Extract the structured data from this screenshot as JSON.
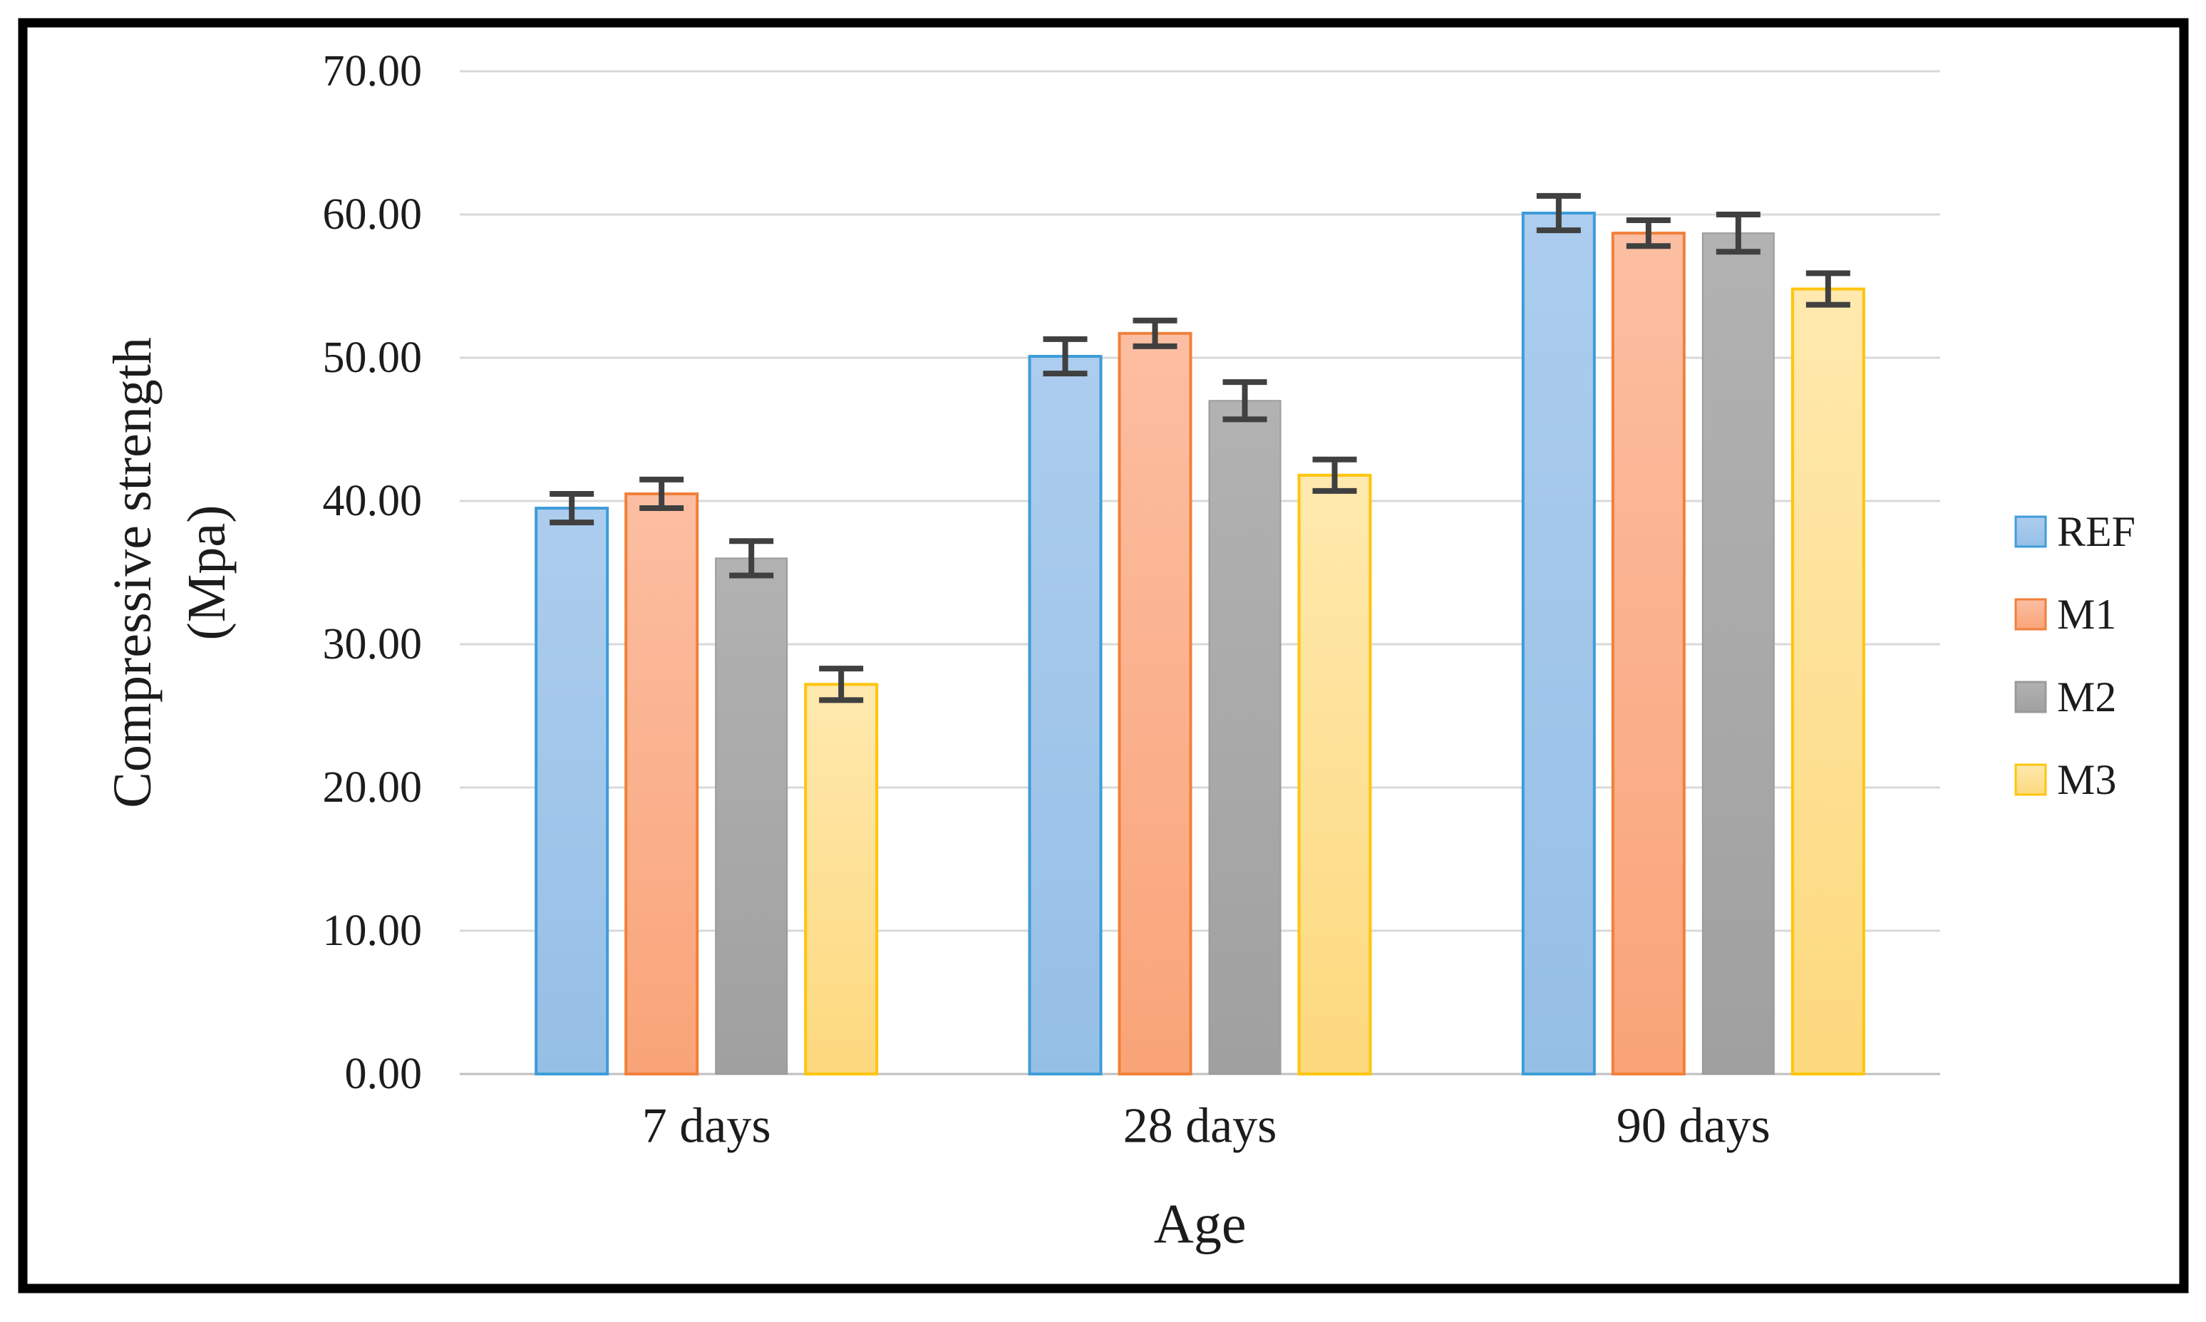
{
  "figure": {
    "background": "#FFFFFF",
    "border_color": "#000000",
    "text_color": "#1C1C1C",
    "gridline_color": "#D9D9D9",
    "axis_line_color": "#BFBFBF",
    "error_bar_color": "#404040"
  },
  "chart_data": {
    "type": "bar",
    "title": "",
    "xlabel": "Age",
    "ylabel_line1": "Compressive strength",
    "ylabel_line2": "(Mpa)",
    "ylim": [
      0,
      70
    ],
    "ytick_step": 10,
    "grid": true,
    "legend_position": "right",
    "categories": [
      "7 days",
      "28 days",
      "90 days"
    ],
    "y_tick_labels": [
      "0.00",
      "10.00",
      "20.00",
      "30.00",
      "40.00",
      "50.00",
      "60.00",
      "70.00"
    ],
    "series": [
      {
        "name": "REF",
        "values": [
          39.5,
          50.1,
          60.1
        ],
        "errors": [
          1.0,
          1.2,
          1.2
        ],
        "fill_top": "#ACCDEE",
        "fill": "#96BFE6",
        "stroke": "#3E9CD9"
      },
      {
        "name": "M1",
        "values": [
          40.5,
          51.7,
          58.7
        ],
        "errors": [
          1.0,
          0.9,
          0.9
        ],
        "fill_top": "#FCBEA2",
        "fill": "#F9A478",
        "stroke": "#F0803A"
      },
      {
        "name": "M2",
        "values": [
          36.0,
          47.0,
          58.7
        ],
        "errors": [
          1.2,
          1.3,
          1.3
        ],
        "fill_top": "#B2B2B2",
        "fill": "#A0A0A0",
        "stroke": "#9B9B9B"
      },
      {
        "name": "M3",
        "values": [
          27.2,
          41.8,
          54.8
        ],
        "errors": [
          1.1,
          1.1,
          1.1
        ],
        "fill_top": "#FFE9AE",
        "fill": "#FDD97E",
        "stroke": "#FFC40C"
      }
    ]
  }
}
